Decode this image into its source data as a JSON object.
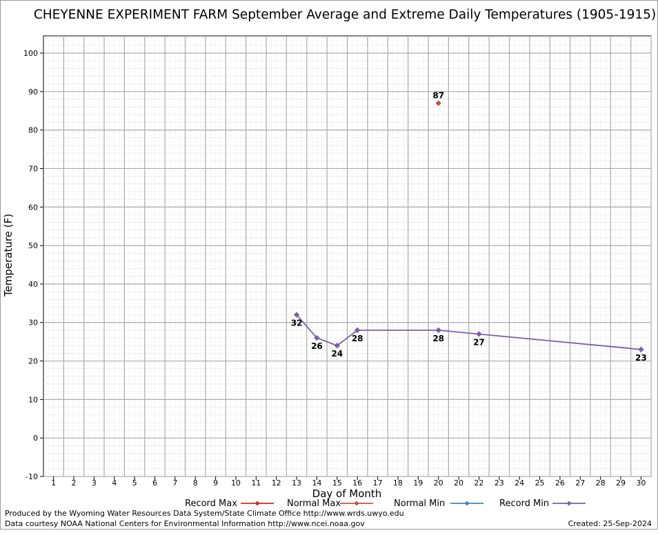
{
  "chart_data": {
    "type": "line",
    "title": "CHEYENNE EXPERIMENT FARM September Average and Extreme Daily Temperatures (1905-1915)",
    "xlabel": "Day of Month",
    "ylabel": "Temperature (F)",
    "xlim": [
      1,
      30
    ],
    "ylim": [
      -10,
      100
    ],
    "x_ticks": [
      "1",
      "2",
      "3",
      "4",
      "5",
      "6",
      "7",
      "8",
      "9",
      "10",
      "11",
      "12",
      "13",
      "14",
      "15",
      "16",
      "17",
      "18",
      "19",
      "20",
      "20",
      "22",
      "23",
      "24",
      "25",
      "26",
      "27",
      "28",
      "29",
      "30"
    ],
    "y_ticks": [
      -10,
      0,
      10,
      20,
      30,
      40,
      50,
      60,
      70,
      80,
      90,
      100
    ],
    "grid": true,
    "legend_position": "bottom",
    "series": [
      {
        "name": "Record Max",
        "color": "#d62728",
        "x": [],
        "y": []
      },
      {
        "name": "Normal Max",
        "color": "#c0504d",
        "x": [
          20
        ],
        "y": [
          87
        ],
        "labels": [
          "87"
        ],
        "connected": false
      },
      {
        "name": "Normal Min",
        "color": "#4682b4",
        "x": [],
        "y": []
      },
      {
        "name": "Record Min",
        "color": "#7b5ea7",
        "x": [
          13,
          14,
          15,
          16,
          20,
          22,
          30
        ],
        "y": [
          32,
          26,
          24,
          28,
          28,
          27,
          23
        ],
        "labels": [
          "32",
          "26",
          "24",
          "28",
          "28",
          "27",
          "23"
        ],
        "connected": true
      }
    ]
  },
  "footer": {
    "producer": "Produced by the Wyoming Water Resources Data System/State Climate Office http://www.wrds.uwyo.edu",
    "courtesy": "Data courtesy NOAA National Centers for Environmental Information http://www.ncei.noaa.gov",
    "created": "Created:  25-Sep-2024"
  }
}
